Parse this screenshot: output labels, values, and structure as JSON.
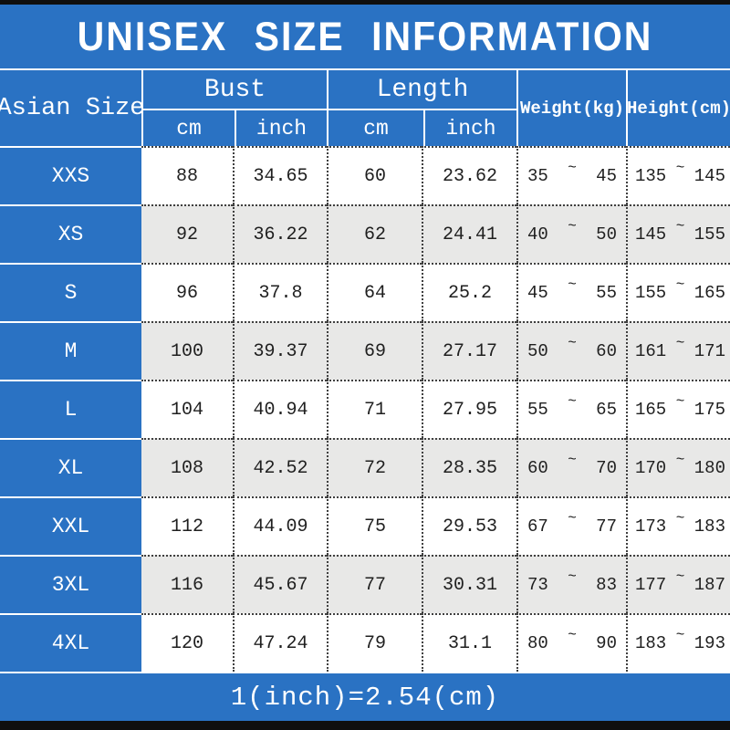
{
  "title": "UNISEX SIZE INFORMATION",
  "tilde": "~",
  "header": {
    "size_col": "Asian Size",
    "bust": "Bust",
    "length": "Length",
    "cm": "cm",
    "inch": "inch",
    "weight": "Weight(kg)",
    "height": "Height(cm)"
  },
  "chart_data": {
    "type": "table",
    "title": "UNISEX SIZE INFORMATION",
    "columns": [
      "Asian Size",
      "Bust cm",
      "Bust inch",
      "Length cm",
      "Length inch",
      "Weight(kg)",
      "Height(cm)"
    ],
    "rows": [
      {
        "size": "XXS",
        "bust_cm": "88",
        "bust_in": "34.65",
        "len_cm": "60",
        "len_in": "23.62",
        "w_min": "35",
        "w_max": "45",
        "h_min": "135",
        "h_max": "145"
      },
      {
        "size": "XS",
        "bust_cm": "92",
        "bust_in": "36.22",
        "len_cm": "62",
        "len_in": "24.41",
        "w_min": "40",
        "w_max": "50",
        "h_min": "145",
        "h_max": "155"
      },
      {
        "size": "S",
        "bust_cm": "96",
        "bust_in": "37.8",
        "len_cm": "64",
        "len_in": "25.2",
        "w_min": "45",
        "w_max": "55",
        "h_min": "155",
        "h_max": "165"
      },
      {
        "size": "M",
        "bust_cm": "100",
        "bust_in": "39.37",
        "len_cm": "69",
        "len_in": "27.17",
        "w_min": "50",
        "w_max": "60",
        "h_min": "161",
        "h_max": "171"
      },
      {
        "size": "L",
        "bust_cm": "104",
        "bust_in": "40.94",
        "len_cm": "71",
        "len_in": "27.95",
        "w_min": "55",
        "w_max": "65",
        "h_min": "165",
        "h_max": "175"
      },
      {
        "size": "XL",
        "bust_cm": "108",
        "bust_in": "42.52",
        "len_cm": "72",
        "len_in": "28.35",
        "w_min": "60",
        "w_max": "70",
        "h_min": "170",
        "h_max": "180"
      },
      {
        "size": "XXL",
        "bust_cm": "112",
        "bust_in": "44.09",
        "len_cm": "75",
        "len_in": "29.53",
        "w_min": "67",
        "w_max": "77",
        "h_min": "173",
        "h_max": "183"
      },
      {
        "size": "3XL",
        "bust_cm": "116",
        "bust_in": "45.67",
        "len_cm": "77",
        "len_in": "30.31",
        "w_min": "73",
        "w_max": "83",
        "h_min": "177",
        "h_max": "187"
      },
      {
        "size": "4XL",
        "bust_cm": "120",
        "bust_in": "47.24",
        "len_cm": "79",
        "len_in": "31.1",
        "w_min": "80",
        "w_max": "90",
        "h_min": "183",
        "h_max": "193"
      }
    ],
    "footnote": "1(inch)=2.54(cm)"
  },
  "colors": {
    "blue": "#2a72c3",
    "row_alt": "#e8e8e7",
    "bar": "#0f0f0f",
    "divider": "#3f3f3f",
    "text": "#1f1f1f"
  }
}
